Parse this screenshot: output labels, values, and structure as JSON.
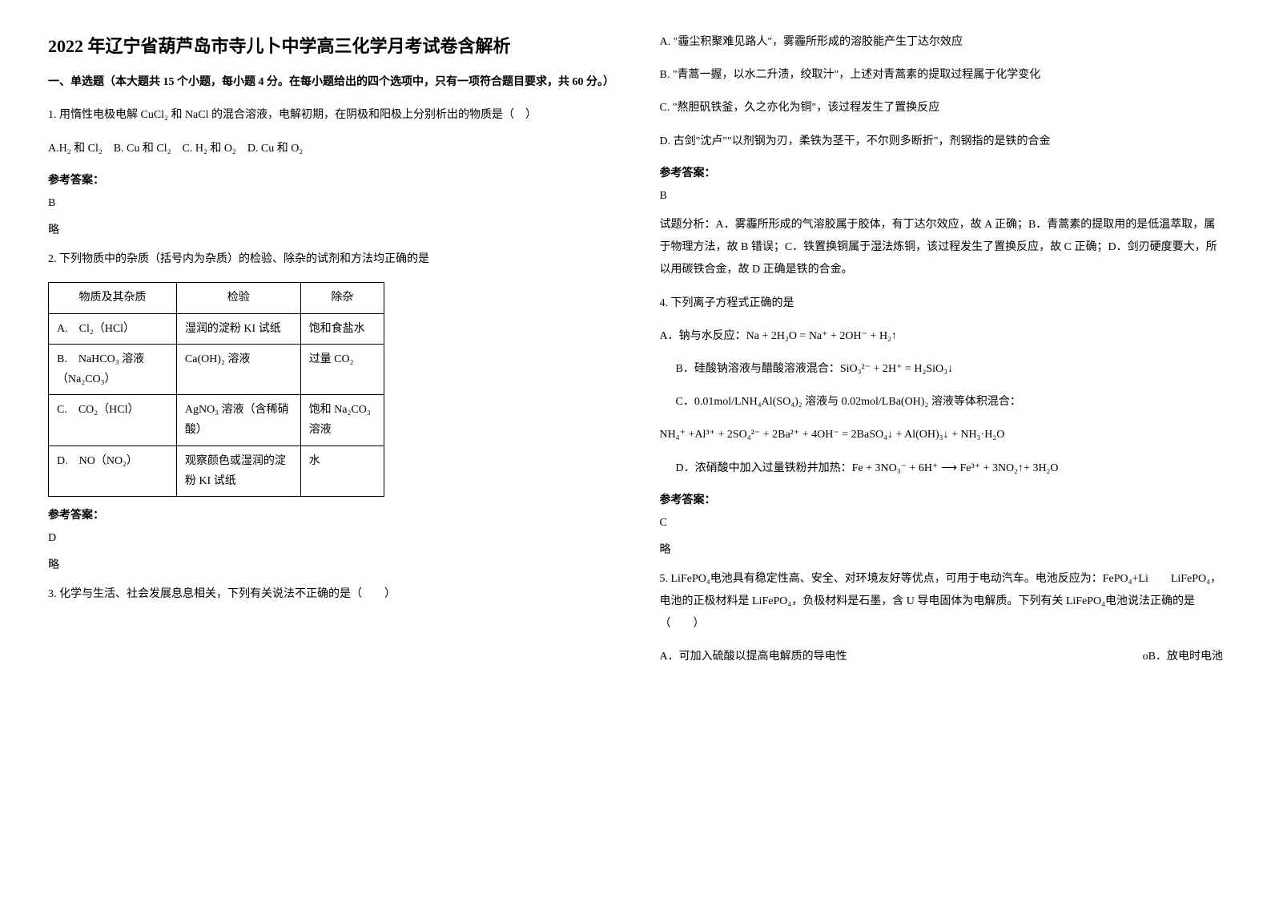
{
  "title": "2022 年辽宁省葫芦岛市寺儿卜中学高三化学月考试卷含解析",
  "section_header": "一、单选题（本大题共 15 个小题，每小题 4 分。在每小题给出的四个选项中，只有一项符合题目要求，共 60 分。）",
  "answer_label": "参考答案：",
  "q1": {
    "text": "1. 用惰性电极电解 CuCl₂ 和 NaCl 的混合溶液，电解初期，在阴极和阳极上分别析出的物质是（　）",
    "options": "A.H₂ 和 Cl₂　B. Cu 和 Cl₂　C. H₂ 和 O₂　D. Cu 和 O₂",
    "answer": "B",
    "brief": "略"
  },
  "q2": {
    "text": "2. 下列物质中的杂质（括号内为杂质）的检验、除杂的试剂和方法均正确的是",
    "table": {
      "headers": [
        "物质及其杂质",
        "检验",
        "除杂"
      ],
      "rows": [
        [
          "A.　Cl₂（HCl）",
          "湿润的淀粉 KI 试纸",
          "饱和食盐水"
        ],
        [
          "B.　NaHCO₃ 溶液（Na₂CO₃）",
          "Ca(OH)₂ 溶液",
          "过量 CO₂"
        ],
        [
          "C.　CO₂（HCl）",
          "AgNO₃ 溶液（含稀硝酸）",
          "饱和 Na₂CO₃ 溶液"
        ],
        [
          "D.　NO（NO₂）",
          "观察颜色或湿润的淀粉 KI 试纸",
          "水"
        ]
      ]
    },
    "answer": "D",
    "brief": "略"
  },
  "q3": {
    "text": "3. 化学与生活、社会发展息息相关，下列有关说法不正确的是（　　）",
    "optA": "A. \"霾尘积聚难见路人\"，雾霾所形成的溶胶能产生丁达尔效应",
    "optB": "B. \"青蒿一握，以水二升渍，绞取汁\"，上述对青蒿素的提取过程属于化学变化",
    "optC": "C. \"熬胆矾铁釜，久之亦化为铜\"，该过程发生了置换反应",
    "optD": "D. 古剑\"沈卢\"\"以剂钢为刃，柔铁为茎干，不尔则多断折\"，剂钢指的是铁的合金",
    "answer": "B",
    "explain": "试题分析：A．雾霾所形成的气溶胶属于胶体，有丁达尔效应，故 A 正确；B．青蒿素的提取用的是低温萃取，属于物理方法，故 B 错误；C．铁置换铜属于湿法炼铜，该过程发生了置换反应，故 C 正确；D．剑刃硬度要大，所以用碳铁合金，故 D 正确是铁的合金。"
  },
  "q4": {
    "text": "4. 下列离子方程式正确的是",
    "optA": "A．钠与水反应：Na + 2H₂O = Na⁺ + 2OH⁻ + H₂↑",
    "optB": "B．硅酸钠溶液与醋酸溶液混合：SiO₃²⁻ + 2H⁺ = H₂SiO₃↓",
    "optC": "C．0.01mol/LNH₄Al(SO₄)₂ 溶液与 0.02mol/LBa(OH)₂ 溶液等体积混合：",
    "eqC": "NH₄⁺ +Al³⁺ + 2SO₄²⁻ + 2Ba²⁺ + 4OH⁻ = 2BaSO₄↓ + Al(OH)₃↓ + NH₃·H₂O",
    "optD": "D．浓硝酸中加入过量铁粉并加热：Fe + 3NO₃⁻ + 6H⁺ ⟶ Fe³⁺ + 3NO₂↑+ 3H₂O",
    "answer": "C",
    "brief": "略"
  },
  "q5": {
    "text": "5. LiFePO₄电池具有稳定性高、安全、对环境友好等优点，可用于电动汽车。电池反应为：FePO₄+Li　　LiFePO₄，电池的正极材料是 LiFePO₄，负极材料是石墨，含 U 导电固体为电解质。下列有关 LiFePO₄电池说法正确的是　　　　　　（　　）",
    "optA_partial": "A．可加入硫酸以提高电解质的导电性",
    "optB_partial": "oB．放电时电池"
  }
}
